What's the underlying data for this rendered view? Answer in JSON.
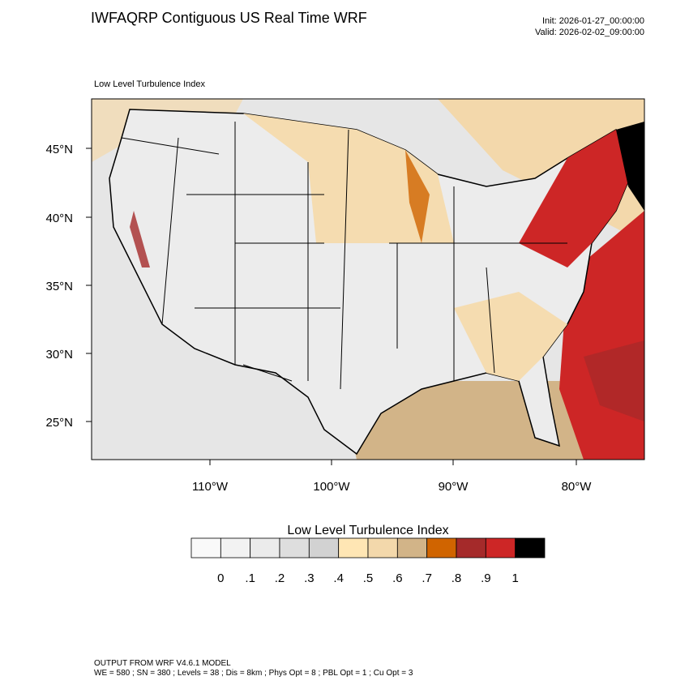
{
  "header": {
    "title": "IWFAQRP Contiguous US Real Time WRF",
    "init": "Init: 2026-01-27_00:00:00",
    "valid": "Valid: 2026-02-02_09:00:00"
  },
  "map": {
    "label": "Low Level Turbulence Index",
    "lat_labels": [
      "45°N",
      "40°N",
      "35°N",
      "30°N",
      "25°N"
    ],
    "lon_labels": [
      "110°W",
      "100°W",
      "90°W",
      "80°W"
    ]
  },
  "colorbar": {
    "title": "Low Level Turbulence Index",
    "labels": [
      "0",
      ".1",
      ".2",
      ".3",
      ".4",
      ".5",
      ".6",
      ".7",
      ".8",
      ".9",
      "1"
    ],
    "colors": [
      "#f9f9f9",
      "#f2f2f2",
      "#ebebeb",
      "#dedede",
      "#d2d2d2",
      "#ffe6b4",
      "#f3d8ab",
      "#d2b488",
      "#d06400",
      "#a52a2a",
      "#cd2626",
      "#000000"
    ]
  },
  "footer": {
    "line1": "OUTPUT FROM WRF V4.6.1 MODEL",
    "line2": "WE = 580 ; SN = 380 ; Levels = 38 ; Dis = 8km ; Phys Opt = 8 ; PBL Opt = 1 ; Cu Opt = 3"
  }
}
